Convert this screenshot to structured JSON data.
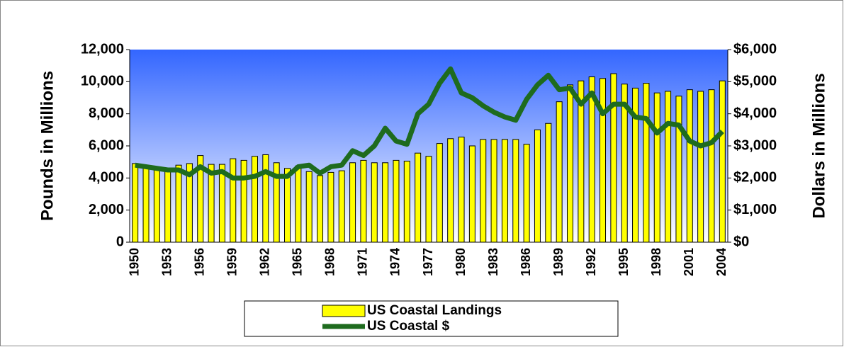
{
  "chart_data": {
    "type": "bar",
    "categories": [
      "1950",
      null,
      null,
      "1953",
      null,
      null,
      "1956",
      null,
      null,
      "1959",
      null,
      null,
      "1962",
      null,
      null,
      "1965",
      null,
      null,
      "1968",
      null,
      null,
      "1971",
      null,
      null,
      "1974",
      null,
      null,
      "1977",
      null,
      null,
      "1980",
      null,
      null,
      "1983",
      null,
      null,
      "1986",
      null,
      null,
      "1989",
      null,
      null,
      "1992",
      null,
      null,
      "1995",
      null,
      null,
      "1998",
      null,
      null,
      "2001",
      null,
      null,
      "2004"
    ],
    "series": [
      {
        "name": "US Coastal Landings",
        "type": "bar",
        "color": "#ffff00",
        "values": [
          4900,
          4650,
          4500,
          4450,
          4800,
          4900,
          5400,
          4850,
          4850,
          5200,
          5100,
          5350,
          5450,
          4950,
          4600,
          4750,
          4400,
          4150,
          4350,
          4450,
          4950,
          5100,
          4950,
          4950,
          5100,
          5050,
          5550,
          5350,
          6150,
          6450,
          6550,
          6000,
          6400,
          6400,
          6400,
          6400,
          6100,
          7000,
          7400,
          8750,
          9800,
          10050,
          10300,
          10200,
          10500,
          9850,
          9600,
          9900,
          9300,
          9400,
          9100,
          9500,
          9400,
          9500,
          10050
        ]
      },
      {
        "name": "US Coastal $",
        "type": "line",
        "axis": "y2",
        "color": "#1e6b1e",
        "values": [
          2400,
          2350,
          2300,
          2250,
          2250,
          2100,
          2350,
          2150,
          2200,
          2000,
          2000,
          2050,
          2200,
          2050,
          2050,
          2350,
          2400,
          2150,
          2350,
          2400,
          2850,
          2700,
          3000,
          3550,
          3150,
          3050,
          4000,
          4300,
          4950,
          5400,
          4650,
          4500,
          4250,
          4050,
          3900,
          3800,
          4450,
          4900,
          5200,
          4750,
          4800,
          4300,
          4650,
          4000,
          4300,
          4300,
          3900,
          3850,
          3400,
          3700,
          3650,
          3150,
          3000,
          3100,
          3450
        ]
      }
    ],
    "y_label": "Pounds in Millions",
    "y2_label": "Dollars in Millions",
    "ylim": [
      0,
      12000
    ],
    "yticks": [
      0,
      {
        "value": 2000,
        "label": "2,000"
      },
      {
        "value": 4000,
        "label": "4,000"
      },
      {
        "value": 6000,
        "label": "6,000"
      },
      {
        "value": 8000,
        "label": "8,000"
      },
      {
        "value": 10000,
        "label": "10,000"
      },
      {
        "value": 12000,
        "label": "12,000"
      }
    ],
    "y2lim": [
      0,
      6000
    ],
    "y2ticks": [
      {
        "value": 0,
        "label": "$0"
      },
      {
        "value": 1000,
        "label": "$1,000"
      },
      {
        "value": 2000,
        "label": "$2,000"
      },
      {
        "value": 3000,
        "label": "$3,000"
      },
      {
        "value": 4000,
        "label": "$4,000"
      },
      {
        "value": 5000,
        "label": "$5,000"
      },
      {
        "value": 6000,
        "label": "$6,000"
      }
    ],
    "legend": "bottom"
  }
}
